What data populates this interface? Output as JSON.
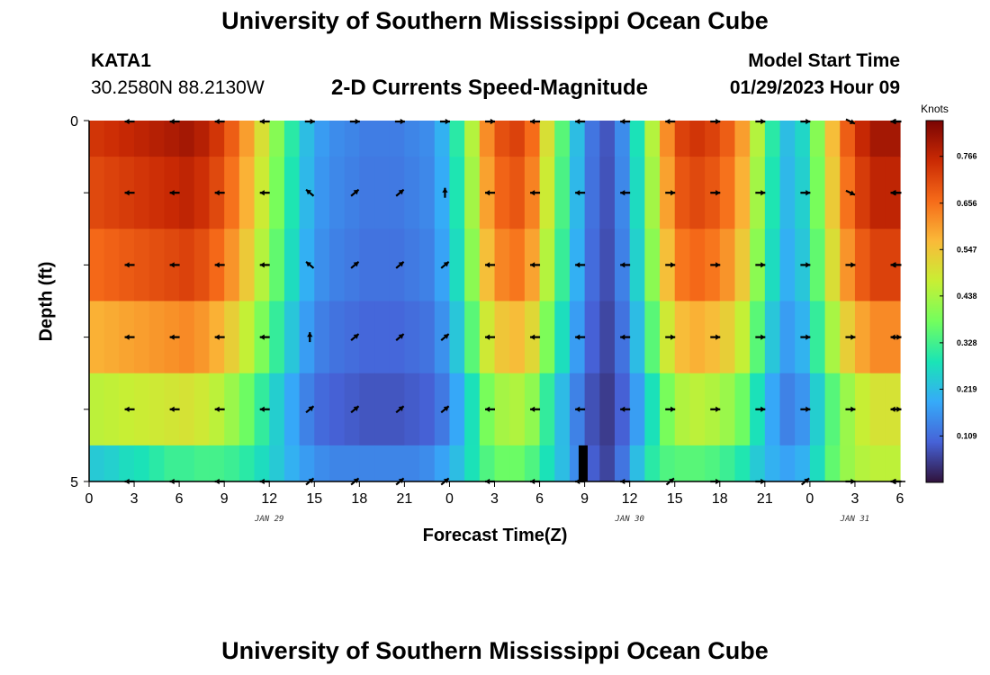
{
  "header": {
    "title": "University of Southern Mississippi Ocean Cube",
    "station": "KATA1",
    "coords": "30.2580N  88.2130W",
    "subtitle": "2-D Currents Speed-Magnitude",
    "model_label": "Model Start Time",
    "model_time": "01/29/2023 Hour 09",
    "footer_title": "University of Southern Mississippi Ocean Cube"
  },
  "chart_data": {
    "type": "heatmap",
    "title": "2-D Currents Speed-Magnitude",
    "xlabel": "Forecast Time(Z)",
    "ylabel": "Depth (ft)",
    "x_tick_labels": [
      "0",
      "3",
      "6",
      "9",
      "12",
      "15",
      "18",
      "21",
      "0",
      "3",
      "6",
      "9",
      "12",
      "15",
      "18",
      "21",
      "0",
      "3",
      "6"
    ],
    "x_hours": [
      0,
      3,
      6,
      9,
      12,
      15,
      18,
      21,
      24,
      27,
      30,
      33,
      36,
      39,
      42,
      45,
      48,
      51,
      54
    ],
    "date_labels": [
      {
        "text": "JAN 29",
        "hour": 12
      },
      {
        "text": "JAN 30",
        "hour": 36
      },
      {
        "text": "JAN 31",
        "hour": 51
      }
    ],
    "y_tick_labels": [
      "0",
      "",
      "",
      "",
      "",
      "5"
    ],
    "y_range": [
      0,
      5
    ],
    "depth_rows": 5,
    "colorbar": {
      "unit": "Knots",
      "min": 0.0,
      "max": 0.85,
      "tick_values": [
        0.109,
        0.219,
        0.328,
        0.438,
        0.547,
        0.656,
        0.766
      ],
      "tick_labels": [
        "0.109",
        "0.219",
        "0.328",
        "0.438",
        "0.547",
        "0.656",
        "0.766"
      ],
      "colors": [
        "#30123b",
        "#4662d7",
        "#36aaf9",
        "#1ae4b6",
        "#72fe5e",
        "#c8ef34",
        "#faba39",
        "#f66b19",
        "#ca2a04",
        "#7a0403"
      ]
    },
    "time_hours": [
      0,
      1,
      2,
      3,
      4,
      5,
      6,
      7,
      8,
      9,
      10,
      11,
      12,
      13,
      14,
      15,
      16,
      17,
      18,
      19,
      20,
      21,
      22,
      23,
      24,
      25,
      26,
      27,
      28,
      29,
      30,
      31,
      32,
      33,
      34,
      35,
      36,
      37,
      38,
      39,
      40,
      41,
      42,
      43,
      44,
      45,
      46,
      47,
      48,
      49,
      50,
      51,
      52,
      53,
      54
    ],
    "speed_surface": [
      0.74,
      0.75,
      0.76,
      0.77,
      0.78,
      0.79,
      0.8,
      0.78,
      0.74,
      0.68,
      0.6,
      0.5,
      0.4,
      0.3,
      0.22,
      0.17,
      0.15,
      0.14,
      0.13,
      0.13,
      0.13,
      0.14,
      0.15,
      0.2,
      0.3,
      0.45,
      0.62,
      0.7,
      0.72,
      0.66,
      0.5,
      0.35,
      0.22,
      0.12,
      0.08,
      0.15,
      0.28,
      0.45,
      0.62,
      0.72,
      0.74,
      0.72,
      0.68,
      0.6,
      0.45,
      0.3,
      0.22,
      0.26,
      0.4,
      0.56,
      0.68,
      0.76,
      0.8,
      0.8,
      0.79
    ],
    "depth_factor": [
      1.0,
      0.96,
      0.9,
      0.78,
      0.62
    ],
    "speed_bottom": [
      0.24,
      0.25,
      0.27,
      0.28,
      0.3,
      0.32,
      0.32,
      0.33,
      0.33,
      0.32,
      0.3,
      0.27,
      0.24,
      0.2,
      0.17,
      0.15,
      0.14,
      0.14,
      0.14,
      0.14,
      0.14,
      0.14,
      0.15,
      0.18,
      0.22,
      0.28,
      0.34,
      0.37,
      0.37,
      0.34,
      0.28,
      0.22,
      0.15,
      0.09,
      0.06,
      0.12,
      0.22,
      0.3,
      0.34,
      0.35,
      0.35,
      0.34,
      0.32,
      0.29,
      0.24,
      0.2,
      0.18,
      0.2,
      0.27,
      0.36,
      0.42,
      0.45,
      0.46,
      0.46,
      0.46
    ],
    "black_bar": {
      "hour_start": 32.6,
      "hour_end": 33.2,
      "depth_start": 4.5,
      "depth_end": 5
    },
    "vectors": [
      {
        "depth": 0,
        "dirs": [
          "W",
          "W",
          "W",
          "W",
          "E",
          "E",
          "E",
          "E",
          "E",
          "W",
          "W",
          "W",
          "W",
          "E",
          "E",
          "E",
          "SE",
          "W",
          "W"
        ]
      },
      {
        "depth": 1,
        "dirs": [
          "W",
          "W",
          "W",
          "W",
          "NW",
          "NE",
          "NE",
          "N",
          "W",
          "W",
          "W",
          "W",
          "E",
          "E",
          "E",
          "E",
          "SE",
          "W",
          "W"
        ]
      },
      {
        "depth": 2,
        "dirs": [
          "W",
          "W",
          "W",
          "W",
          "NW",
          "NE",
          "NE",
          "NE",
          "W",
          "W",
          "W",
          "W",
          "E",
          "E",
          "E",
          "E",
          "E",
          "W",
          "W"
        ]
      },
      {
        "depth": 3,
        "dirs": [
          "W",
          "W",
          "W",
          "W",
          "N",
          "NE",
          "NE",
          "NE",
          "W",
          "W",
          "W",
          "W",
          "E",
          "E",
          "E",
          "E",
          "E",
          "W",
          "E"
        ]
      },
      {
        "depth": 4,
        "dirs": [
          "W",
          "W",
          "W",
          "W",
          "NE",
          "NE",
          "NE",
          "NE",
          "W",
          "W",
          "W",
          "W",
          "E",
          "E",
          "E",
          "E",
          "E",
          "W",
          "E"
        ]
      },
      {
        "depth": 5,
        "dirs": [
          "W",
          "W",
          "W",
          "W",
          "NE",
          "NE",
          "NE",
          "NE",
          "W",
          "W",
          "W",
          "W",
          "NE",
          "E",
          "E",
          "NE",
          "E",
          "W",
          "W"
        ]
      }
    ]
  }
}
